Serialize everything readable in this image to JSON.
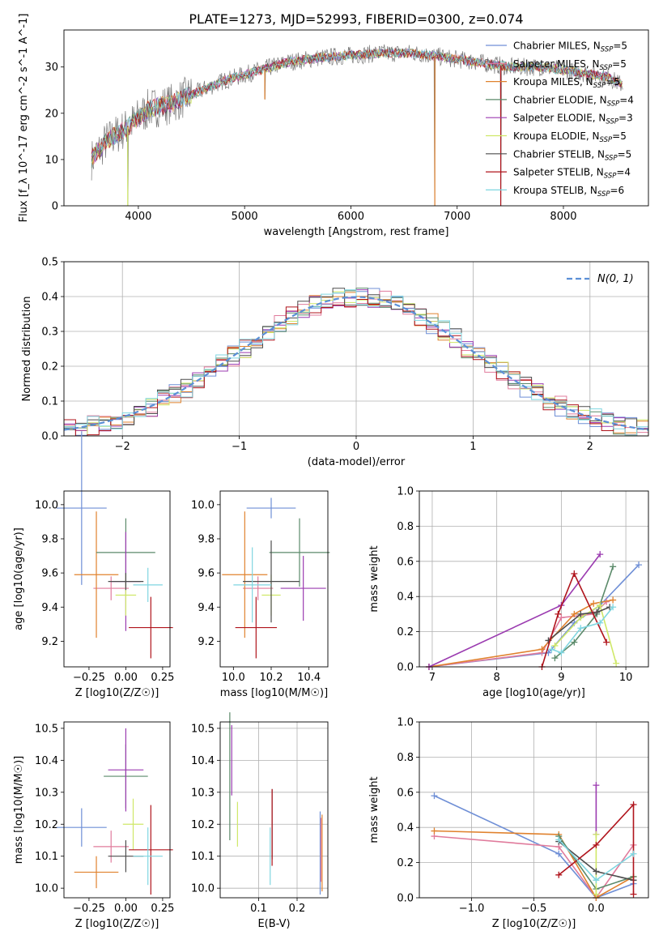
{
  "figure_title": "PLATE=1273, MJD=52993, FIBERID=0300, z=0.074",
  "colors": {
    "chabrier_miles": "#6f8fd6",
    "salpeter_miles": "#e07b9c",
    "kroupa_miles": "#e0822e",
    "chabrier_elodie": "#5b8a6a",
    "salpeter_elodie": "#9b3bb0",
    "kroupa_elodie": "#cfe868",
    "chabrier_stelib": "#4d4d4d",
    "salpeter_stelib": "#b0141c",
    "kroupa_stelib": "#7fd6e0",
    "grid": "#b0b0b0",
    "gauss": "#5b8fd6"
  },
  "chart_data": [
    {
      "id": "spectrum",
      "type": "line",
      "xlabel": "wavelength [Angstrom, rest frame]",
      "ylabel": "Flux [f_λ 10^-17 erg cm^-2 s^-1 A^-1]",
      "xlim": [
        3300,
        8800
      ],
      "ylim": [
        0,
        38
      ],
      "xticks": [
        4000,
        5000,
        6000,
        7000,
        8000
      ],
      "yticks": [
        0,
        10,
        20,
        30
      ],
      "grid": false,
      "legend_position": "right",
      "legend": [
        {
          "prefix": "Chabrier MILES, N",
          "sub": "SSP",
          "suffix": "=5",
          "color_key": "chabrier_miles"
        },
        {
          "prefix": "Salpeter MILES, N",
          "sub": "SSP",
          "suffix": "=5",
          "color_key": "salpeter_miles"
        },
        {
          "prefix": "Kroupa MILES, N",
          "sub": "SSP",
          "suffix": "=5",
          "color_key": "kroupa_miles"
        },
        {
          "prefix": "Chabrier ELODIE, N",
          "sub": "SSP",
          "suffix": "=4",
          "color_key": "chabrier_elodie"
        },
        {
          "prefix": "Salpeter ELODIE, N",
          "sub": "SSP",
          "suffix": "=3",
          "color_key": "salpeter_elodie"
        },
        {
          "prefix": "Kroupa ELODIE, N",
          "sub": "SSP",
          "suffix": "=5",
          "color_key": "kroupa_elodie"
        },
        {
          "prefix": "Chabrier STELIB, N",
          "sub": "SSP",
          "suffix": "=5",
          "color_key": "chabrier_stelib"
        },
        {
          "prefix": "Salpeter STELIB, N",
          "sub": "SSP",
          "suffix": "=4",
          "color_key": "salpeter_stelib"
        },
        {
          "prefix": "Kroupa STELIB, N",
          "sub": "SSP",
          "suffix": "=6",
          "color_key": "kroupa_stelib"
        }
      ],
      "continuum": [
        [
          3560,
          10
        ],
        [
          3700,
          14
        ],
        [
          3900,
          17
        ],
        [
          4100,
          21
        ],
        [
          4300,
          22
        ],
        [
          4500,
          24
        ],
        [
          4800,
          27
        ],
        [
          5100,
          29
        ],
        [
          5400,
          31
        ],
        [
          5700,
          32
        ],
        [
          6000,
          32.5
        ],
        [
          6300,
          33
        ],
        [
          6600,
          33
        ],
        [
          6900,
          32
        ],
        [
          7200,
          31
        ],
        [
          7500,
          30
        ],
        [
          7800,
          30
        ],
        [
          8100,
          29
        ],
        [
          8400,
          28
        ],
        [
          8560,
          26
        ]
      ],
      "spikes": [
        [
          3900,
          0
        ],
        [
          5190,
          23
        ],
        [
          6790,
          0
        ],
        [
          7410,
          0
        ]
      ]
    },
    {
      "id": "residuals",
      "type": "line",
      "xlabel": "(data-model)/error",
      "ylabel": "Normed distribution",
      "xlim": [
        -2.5,
        2.5
      ],
      "ylim": [
        0,
        0.5
      ],
      "xticks": [
        -2,
        -1,
        0,
        1,
        2
      ],
      "yticks": [
        0.0,
        0.1,
        0.2,
        0.3,
        0.4,
        0.5
      ],
      "grid": true,
      "legend_position": "top-right",
      "legend_label": "N(0, 1)",
      "histogram_bin_width": 0.1
    },
    {
      "id": "age_vs_Z",
      "type": "scatter",
      "xlabel": "Z [log10(Z/Z☉)]",
      "ylabel": "age [log10(age/yr)]",
      "xlim": [
        -0.42,
        0.3
      ],
      "ylim": [
        9.05,
        10.08
      ],
      "xticks": [
        -0.25,
        0.0,
        0.25
      ],
      "yticks": [
        9.2,
        9.4,
        9.6,
        9.8,
        10.0
      ],
      "grid": false,
      "points": [
        {
          "key": "chabrier_miles",
          "x": -0.3,
          "xerr": 0.17,
          "y": 9.98,
          "yerr": 0.45
        },
        {
          "key": "salpeter_miles",
          "x": -0.1,
          "xerr": 0.12,
          "y": 9.51,
          "yerr": 0.07
        },
        {
          "key": "kroupa_miles",
          "x": -0.2,
          "xerr": 0.15,
          "y": 9.59,
          "yerr": 0.37
        },
        {
          "key": "chabrier_elodie",
          "x": 0.0,
          "xerr": 0.2,
          "y": 9.72,
          "yerr": 0.2
        },
        {
          "key": "salpeter_elodie",
          "x": 0.0,
          "xerr": 0.1,
          "y": 9.55,
          "yerr": 0.29
        },
        {
          "key": "kroupa_elodie",
          "x": 0.0,
          "xerr": 0.07,
          "y": 9.47,
          "yerr": 0.12
        },
        {
          "key": "chabrier_stelib",
          "x": 0.0,
          "xerr": 0.12,
          "y": 9.55,
          "yerr": 0.05
        },
        {
          "key": "salpeter_stelib",
          "x": 0.17,
          "xerr": 0.15,
          "y": 9.28,
          "yerr": 0.18
        },
        {
          "key": "kroupa_stelib",
          "x": 0.15,
          "xerr": 0.1,
          "y": 9.53,
          "yerr": 0.1
        }
      ]
    },
    {
      "id": "age_vs_mass",
      "type": "scatter",
      "xlabel": "mass [log10(M/M☉)]",
      "ylabel": "",
      "xlim": [
        9.93,
        10.5
      ],
      "ylim": [
        9.05,
        10.08
      ],
      "xticks": [
        10.0,
        10.2,
        10.4
      ],
      "yticks": [
        9.2,
        9.4,
        9.6,
        9.8,
        10.0
      ],
      "grid": false,
      "points": [
        {
          "key": "chabrier_miles",
          "x": 10.2,
          "xerr": 0.13,
          "y": 9.98,
          "yerr": 0.06
        },
        {
          "key": "salpeter_miles",
          "x": 10.13,
          "xerr": 0.08,
          "y": 9.51,
          "yerr": 0.07
        },
        {
          "key": "kroupa_miles",
          "x": 10.06,
          "xerr": 0.12,
          "y": 9.59,
          "yerr": 0.37
        },
        {
          "key": "chabrier_elodie",
          "x": 10.35,
          "xerr": 0.16,
          "y": 9.72,
          "yerr": 0.2
        },
        {
          "key": "salpeter_elodie",
          "x": 10.37,
          "xerr": 0.12,
          "y": 9.51,
          "yerr": 0.19
        },
        {
          "key": "kroupa_elodie",
          "x": 10.2,
          "xerr": 0.05,
          "y": 9.47,
          "yerr": 0.12
        },
        {
          "key": "chabrier_stelib",
          "x": 10.2,
          "xerr": 0.15,
          "y": 9.55,
          "yerr": 0.24
        },
        {
          "key": "salpeter_stelib",
          "x": 10.12,
          "xerr": 0.11,
          "y": 9.28,
          "yerr": 0.18
        },
        {
          "key": "kroupa_stelib",
          "x": 10.1,
          "xerr": 0.1,
          "y": 9.53,
          "yerr": 0.22
        }
      ]
    },
    {
      "id": "weight_vs_age",
      "type": "line",
      "xlabel": "age [log10(age/yr)]",
      "ylabel": "mass weight",
      "xlim": [
        6.8,
        10.35
      ],
      "ylim": [
        0,
        1
      ],
      "xticks": [
        7,
        8,
        9,
        10
      ],
      "yticks": [
        0.0,
        0.2,
        0.4,
        0.6,
        0.8,
        1.0
      ],
      "grid": true,
      "series": [
        {
          "key": "chabrier_miles",
          "points": [
            [
              6.95,
              0.0
            ],
            [
              8.8,
              0.08
            ],
            [
              9.2,
              0.25
            ],
            [
              9.6,
              0.35
            ],
            [
              10.2,
              0.58
            ]
          ]
        },
        {
          "key": "salpeter_miles",
          "points": [
            [
              6.95,
              0.0
            ],
            [
              8.7,
              0.08
            ],
            [
              9.0,
              0.28
            ],
            [
              9.5,
              0.3
            ],
            [
              9.7,
              0.37
            ]
          ]
        },
        {
          "key": "kroupa_miles",
          "points": [
            [
              6.95,
              0.0
            ],
            [
              8.7,
              0.1
            ],
            [
              9.2,
              0.3
            ],
            [
              9.5,
              0.36
            ],
            [
              9.8,
              0.38
            ]
          ]
        },
        {
          "key": "chabrier_elodie",
          "points": [
            [
              8.9,
              0.05
            ],
            [
              9.2,
              0.14
            ],
            [
              9.55,
              0.3
            ],
            [
              9.8,
              0.57
            ]
          ]
        },
        {
          "key": "salpeter_elodie",
          "points": [
            [
              6.95,
              0.0
            ],
            [
              9.0,
              0.35
            ],
            [
              9.6,
              0.64
            ]
          ]
        },
        {
          "key": "kroupa_elodie",
          "points": [
            [
              8.9,
              0.12
            ],
            [
              9.3,
              0.28
            ],
            [
              9.6,
              0.35
            ],
            [
              9.85,
              0.02
            ]
          ]
        },
        {
          "key": "chabrier_stelib",
          "points": [
            [
              8.8,
              0.15
            ],
            [
              9.3,
              0.3
            ],
            [
              9.55,
              0.31
            ],
            [
              9.75,
              0.34
            ]
          ]
        },
        {
          "key": "salpeter_stelib",
          "points": [
            [
              8.7,
              0.0
            ],
            [
              8.95,
              0.3
            ],
            [
              9.2,
              0.53
            ],
            [
              9.7,
              0.14
            ]
          ]
        },
        {
          "key": "kroupa_stelib",
          "points": [
            [
              8.85,
              0.1
            ],
            [
              9.0,
              0.08
            ],
            [
              9.3,
              0.22
            ],
            [
              9.6,
              0.25
            ],
            [
              9.8,
              0.34
            ]
          ]
        }
      ]
    },
    {
      "id": "mass_vs_Z",
      "type": "scatter",
      "xlabel": "Z [log10(Z/Z☉)]",
      "ylabel": "mass [log10(M/M☉)]",
      "xlim": [
        -0.42,
        0.3
      ],
      "ylim": [
        9.97,
        10.52
      ],
      "xticks": [
        -0.25,
        0.0,
        0.25
      ],
      "yticks": [
        10.0,
        10.1,
        10.2,
        10.3,
        10.4,
        10.5
      ],
      "grid": false,
      "points": [
        {
          "key": "chabrier_miles",
          "x": -0.3,
          "xerr": 0.17,
          "y": 10.19,
          "yerr": 0.06
        },
        {
          "key": "salpeter_miles",
          "x": -0.1,
          "xerr": 0.12,
          "y": 10.13,
          "yerr": 0.05
        },
        {
          "key": "kroupa_miles",
          "x": -0.2,
          "xerr": 0.15,
          "y": 10.05,
          "yerr": 0.05
        },
        {
          "key": "chabrier_elodie",
          "x": 0.0,
          "xerr": 0.15,
          "y": 10.35,
          "yerr": 0.1
        },
        {
          "key": "salpeter_elodie",
          "x": 0.0,
          "xerr": 0.12,
          "y": 10.37,
          "yerr": 0.13
        },
        {
          "key": "kroupa_elodie",
          "x": 0.05,
          "xerr": 0.07,
          "y": 10.2,
          "yerr": 0.08
        },
        {
          "key": "chabrier_stelib",
          "x": 0.0,
          "xerr": 0.12,
          "y": 10.1,
          "yerr": 0.05
        },
        {
          "key": "salpeter_stelib",
          "x": 0.17,
          "xerr": 0.15,
          "y": 10.12,
          "yerr": 0.14
        },
        {
          "key": "kroupa_stelib",
          "x": 0.15,
          "xerr": 0.1,
          "y": 10.1,
          "yerr": 0.09
        }
      ]
    },
    {
      "id": "mass_vs_ebv",
      "type": "scatter",
      "xlabel": "E(B-V)",
      "ylabel": "",
      "xlim": [
        0.0,
        0.28
      ],
      "ylim": [
        9.97,
        10.52
      ],
      "xticks": [
        0.1,
        0.2
      ],
      "yticks": [
        10.0,
        10.1,
        10.2,
        10.3,
        10.4,
        10.5
      ],
      "grid": true,
      "points": [
        {
          "key": "chabrier_elodie",
          "x": 0.025,
          "xerr": 0.0,
          "y": 10.35,
          "yerr": 0.2
        },
        {
          "key": "salpeter_elodie",
          "x": 0.03,
          "xerr": 0.0,
          "y": 10.4,
          "yerr": 0.11
        },
        {
          "key": "kroupa_elodie",
          "x": 0.045,
          "xerr": 0.0,
          "y": 10.2,
          "yerr": 0.07
        },
        {
          "key": "kroupa_stelib",
          "x": 0.13,
          "xerr": 0.0,
          "y": 10.1,
          "yerr": 0.09
        },
        {
          "key": "chabrier_stelib",
          "x": 0.135,
          "xerr": 0.0,
          "y": 10.2,
          "yerr": 0.11
        },
        {
          "key": "salpeter_stelib",
          "x": 0.135,
          "xerr": 0.0,
          "y": 10.19,
          "yerr": 0.12
        },
        {
          "key": "chabrier_miles",
          "x": 0.26,
          "xerr": 0.0,
          "y": 10.11,
          "yerr": 0.13
        },
        {
          "key": "kroupa_miles",
          "x": 0.265,
          "xerr": 0.0,
          "y": 10.11,
          "yerr": 0.12
        },
        {
          "key": "salpeter_miles",
          "x": 0.262,
          "xerr": 0.0,
          "y": 10.12,
          "yerr": 0.1
        }
      ]
    },
    {
      "id": "weight_vs_Z",
      "type": "line",
      "xlabel": "Z [log10(Z/Z☉)]",
      "ylabel": "mass weight",
      "xlim": [
        -1.42,
        0.42
      ],
      "ylim": [
        0,
        1
      ],
      "xticks": [
        -1.0,
        -0.5,
        0.0
      ],
      "yticks": [
        0.0,
        0.2,
        0.4,
        0.6,
        0.8,
        1.0
      ],
      "grid": true,
      "series": [
        {
          "key": "chabrier_miles",
          "points": [
            [
              -1.3,
              0.58
            ],
            [
              -0.3,
              0.25
            ],
            [
              0.0,
              0.0
            ],
            [
              0.3,
              0.08
            ]
          ]
        },
        {
          "key": "salpeter_miles",
          "points": [
            [
              -1.3,
              0.35
            ],
            [
              -0.3,
              0.29
            ],
            [
              0.0,
              0.0
            ],
            [
              0.3,
              0.3
            ]
          ]
        },
        {
          "key": "kroupa_miles",
          "points": [
            [
              -1.3,
              0.38
            ],
            [
              -0.3,
              0.36
            ],
            [
              0.0,
              0.0
            ],
            [
              0.3,
              0.12
            ]
          ]
        },
        {
          "key": "chabrier_elodie",
          "points": [
            [
              -0.3,
              0.35
            ],
            [
              0.0,
              0.05
            ],
            [
              0.3,
              0.12
            ]
          ]
        },
        {
          "key": "salpeter_elodie",
          "points": [
            [
              0.0,
              0.36
            ],
            [
              0.0,
              0.64
            ]
          ]
        },
        {
          "key": "kroupa_elodie",
          "points": [
            [
              0.0,
              0.36
            ],
            [
              0.0,
              0.02
            ]
          ]
        },
        {
          "key": "chabrier_stelib",
          "points": [
            [
              -0.3,
              0.32
            ],
            [
              0.0,
              0.15
            ],
            [
              0.3,
              0.1
            ]
          ]
        },
        {
          "key": "salpeter_stelib",
          "points": [
            [
              -0.3,
              0.13
            ],
            [
              0.0,
              0.3
            ],
            [
              0.3,
              0.53
            ],
            [
              0.3,
              0.02
            ]
          ]
        },
        {
          "key": "kroupa_stelib",
          "points": [
            [
              -0.3,
              0.33
            ],
            [
              0.0,
              0.1
            ],
            [
              0.3,
              0.25
            ]
          ]
        }
      ]
    }
  ]
}
